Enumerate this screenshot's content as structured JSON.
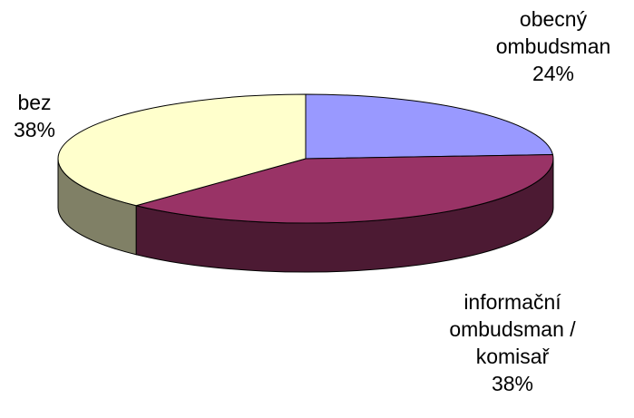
{
  "chart_data": {
    "type": "pie",
    "categories": [
      "obecný ombudsman",
      "informační ombudsman / komisař",
      "bez"
    ],
    "values": [
      24,
      38,
      38
    ],
    "value_labels": [
      "24%",
      "38%",
      "38%"
    ],
    "colors": [
      "#9999ff",
      "#993366",
      "#ffffcc"
    ],
    "side_colors": [
      "#4d4d80",
      "#4c1a33",
      "#808066"
    ]
  }
}
